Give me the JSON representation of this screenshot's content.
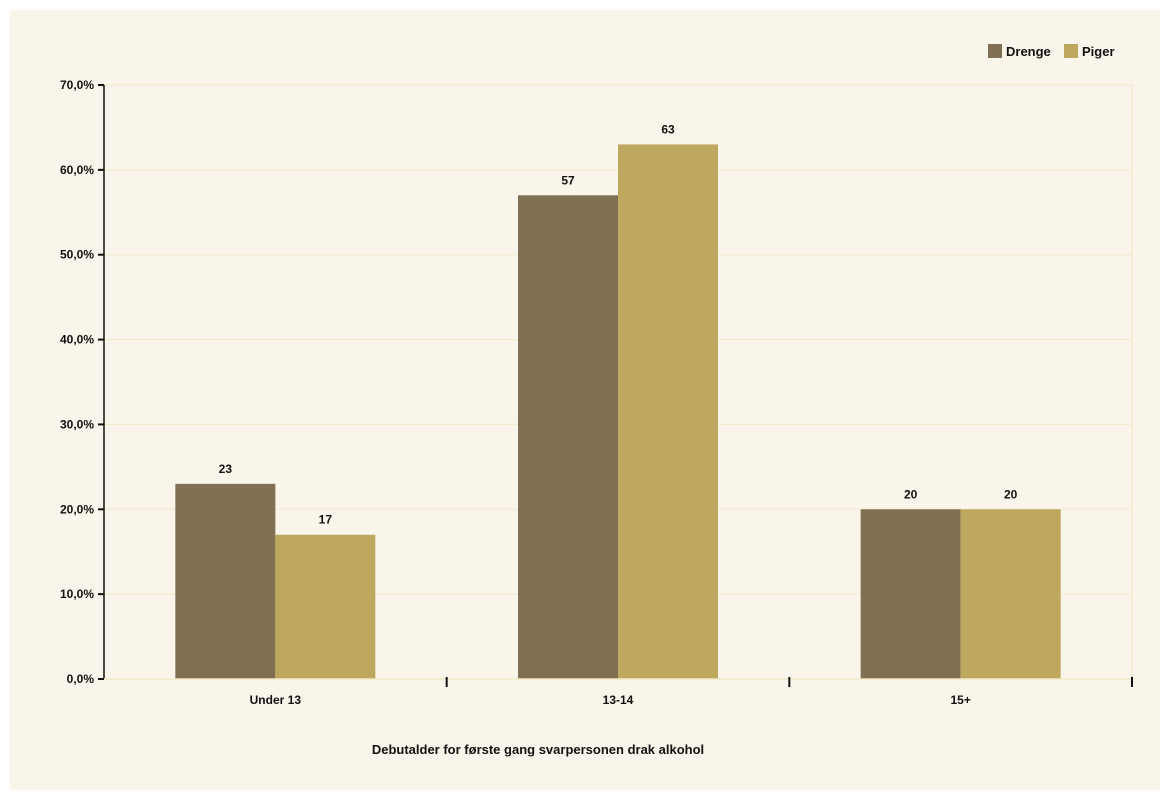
{
  "chart_data": {
    "type": "bar",
    "categories": [
      "Under 13",
      "13-14",
      "15+"
    ],
    "series": [
      {
        "name": "Drenge",
        "values": [
          23,
          57,
          20
        ],
        "labels": [
          "23",
          "57",
          "20"
        ],
        "color": "#816f53"
      },
      {
        "name": "Piger",
        "values": [
          17,
          63,
          20
        ],
        "labels": [
          "17",
          "63",
          "20"
        ],
        "color": "#bea75e"
      }
    ],
    "y_ticks": [
      0,
      10,
      20,
      30,
      40,
      50,
      60,
      70
    ],
    "y_tick_labels": [
      "0,0%",
      "10,0%",
      "20,0%",
      "30,0%",
      "40,0%",
      "50,0%",
      "60,0%",
      "70,0%"
    ],
    "ylim": [
      0,
      70
    ],
    "xlabel": "Debutalder for første gang svarpersonen drak alkohol",
    "ylabel": "",
    "title": "",
    "grid": true,
    "legend_position": "top-right",
    "background_color": "#f9f5ea",
    "gridline_color": "#f2e9c6"
  }
}
